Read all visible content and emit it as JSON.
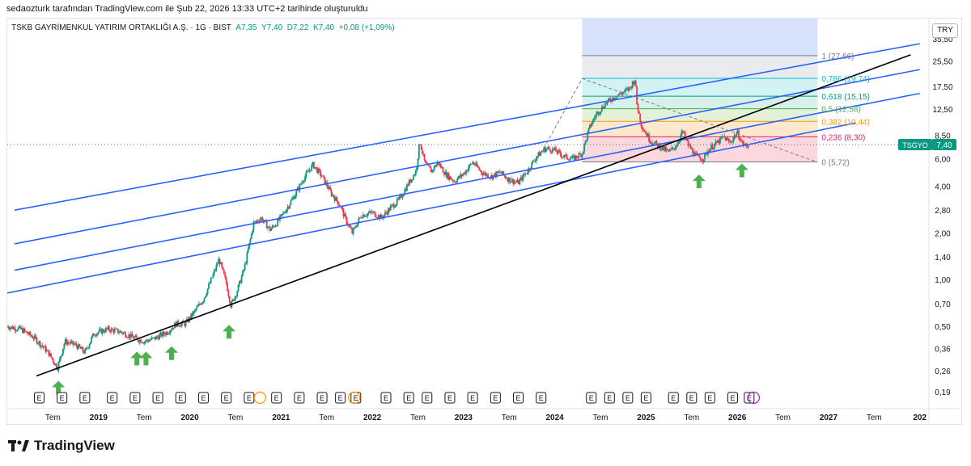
{
  "header": {
    "author_line": "sedaozturk tarafından TradingView.com ile Şub 22, 2026 13:33 UTC+2 tarihinde oluşturuldu"
  },
  "legend": {
    "symbol": "TSKB GAYRİMENKUL YATIRIM ORTAKLIĞI A.Ş. · 1G · BIST",
    "open": "A7,35",
    "high": "Y7,40",
    "low": "D7,22",
    "close": "K7,40",
    "change": "+0,08 (+1,09%)"
  },
  "currency": "TRY",
  "brand": "TradingView",
  "colors": {
    "candle_up": "#089981",
    "candle_down": "#f23645",
    "channel": "#2962ff",
    "trendline": "#000000",
    "arrow": "#4caf50",
    "price_tag": "#089981"
  },
  "chart_data": {
    "type": "candlestick",
    "scale": "log",
    "title": "TSKB GAYRİMENKUL YATIRIM ORTAKLIĞI A.Ş. · 1G · BIST",
    "x_range": [
      "2018-01",
      "2028-01"
    ],
    "y_ticks": [
      "0,19",
      "0,26",
      "0,36",
      "0,50",
      "0,70",
      "1,00",
      "1,40",
      "2,00",
      "2,80",
      "4,00",
      "6,00",
      "8,50",
      "12,50",
      "17,50",
      "25,50",
      "35,50"
    ],
    "y_tick_values": [
      0.19,
      0.26,
      0.36,
      0.5,
      0.7,
      1.0,
      1.4,
      2.0,
      2.8,
      4.0,
      6.0,
      8.5,
      12.5,
      17.5,
      25.5,
      35.5
    ],
    "x_ticks": [
      {
        "label": "Tem",
        "t": 2018.5
      },
      {
        "label": "2019",
        "t": 2019.0
      },
      {
        "label": "Tem",
        "t": 2019.5
      },
      {
        "label": "2020",
        "t": 2020.0
      },
      {
        "label": "Tem",
        "t": 2020.5
      },
      {
        "label": "2021",
        "t": 2021.0
      },
      {
        "label": "Tem",
        "t": 2021.5
      },
      {
        "label": "2022",
        "t": 2022.0
      },
      {
        "label": "Tem",
        "t": 2022.5
      },
      {
        "label": "2023",
        "t": 2023.0
      },
      {
        "label": "Tem",
        "t": 2023.5
      },
      {
        "label": "2024",
        "t": 2024.0
      },
      {
        "label": "Tem",
        "t": 2024.5
      },
      {
        "label": "2025",
        "t": 2025.0
      },
      {
        "label": "Tem",
        "t": 2025.5
      },
      {
        "label": "2026",
        "t": 2026.0
      },
      {
        "label": "Tem",
        "t": 2026.5
      },
      {
        "label": "2027",
        "t": 2027.0
      },
      {
        "label": "Tem",
        "t": 2027.5
      },
      {
        "label": "202",
        "t": 2028.0
      }
    ],
    "bold_x_labels": [
      "2019",
      "2020",
      "2021",
      "2022",
      "2023",
      "2024",
      "2025",
      "2026",
      "2027",
      "202"
    ],
    "price_path": [
      [
        2018.0,
        0.5
      ],
      [
        2018.15,
        0.48
      ],
      [
        2018.3,
        0.42
      ],
      [
        2018.45,
        0.34
      ],
      [
        2018.55,
        0.27
      ],
      [
        2018.63,
        0.4
      ],
      [
        2018.75,
        0.38
      ],
      [
        2018.85,
        0.34
      ],
      [
        2018.95,
        0.45
      ],
      [
        2019.1,
        0.48
      ],
      [
        2019.25,
        0.46
      ],
      [
        2019.4,
        0.42
      ],
      [
        2019.5,
        0.4
      ],
      [
        2019.62,
        0.42
      ],
      [
        2019.75,
        0.46
      ],
      [
        2019.85,
        0.52
      ],
      [
        2019.95,
        0.52
      ],
      [
        2020.05,
        0.62
      ],
      [
        2020.15,
        0.75
      ],
      [
        2020.25,
        1.05
      ],
      [
        2020.32,
        1.35
      ],
      [
        2020.4,
        0.95
      ],
      [
        2020.45,
        0.68
      ],
      [
        2020.52,
        0.85
      ],
      [
        2020.6,
        1.2
      ],
      [
        2020.7,
        2.3
      ],
      [
        2020.78,
        2.5
      ],
      [
        2020.88,
        2.1
      ],
      [
        2020.95,
        2.3
      ],
      [
        2021.05,
        2.8
      ],
      [
        2021.15,
        3.5
      ],
      [
        2021.25,
        4.5
      ],
      [
        2021.35,
        5.5
      ],
      [
        2021.45,
        4.6
      ],
      [
        2021.55,
        3.6
      ],
      [
        2021.65,
        3.0
      ],
      [
        2021.7,
        2.5
      ],
      [
        2021.78,
        2.0
      ],
      [
        2021.88,
        2.6
      ],
      [
        2022.0,
        2.7
      ],
      [
        2022.1,
        2.5
      ],
      [
        2022.2,
        2.9
      ],
      [
        2022.3,
        3.3
      ],
      [
        2022.4,
        4.2
      ],
      [
        2022.48,
        5.0
      ],
      [
        2022.52,
        7.8
      ],
      [
        2022.58,
        5.5
      ],
      [
        2022.65,
        5.0
      ],
      [
        2022.72,
        5.7
      ],
      [
        2022.8,
        4.8
      ],
      [
        2022.9,
        4.3
      ],
      [
        2023.0,
        4.8
      ],
      [
        2023.1,
        5.7
      ],
      [
        2023.2,
        4.9
      ],
      [
        2023.3,
        4.6
      ],
      [
        2023.4,
        4.9
      ],
      [
        2023.5,
        4.4
      ],
      [
        2023.6,
        4.2
      ],
      [
        2023.7,
        5.0
      ],
      [
        2023.8,
        6.2
      ],
      [
        2023.9,
        7.0
      ],
      [
        2024.0,
        6.8
      ],
      [
        2024.1,
        6.2
      ],
      [
        2024.2,
        6.0
      ],
      [
        2024.3,
        6.5
      ],
      [
        2024.38,
        9.5
      ],
      [
        2024.45,
        11.5
      ],
      [
        2024.55,
        13.5
      ],
      [
        2024.65,
        15.0
      ],
      [
        2024.75,
        16.0
      ],
      [
        2024.82,
        17.0
      ],
      [
        2024.88,
        19.7
      ],
      [
        2024.9,
        13.5
      ],
      [
        2024.95,
        9.8
      ],
      [
        2025.05,
        7.8
      ],
      [
        2025.15,
        7.2
      ],
      [
        2025.25,
        6.6
      ],
      [
        2025.33,
        7.3
      ],
      [
        2025.4,
        9.0
      ],
      [
        2025.46,
        7.4
      ],
      [
        2025.55,
        6.2
      ],
      [
        2025.62,
        6.0
      ],
      [
        2025.7,
        7.0
      ],
      [
        2025.78,
        7.6
      ],
      [
        2025.85,
        8.3
      ],
      [
        2025.92,
        7.6
      ],
      [
        2026.0,
        8.9
      ],
      [
        2026.05,
        7.6
      ],
      [
        2026.1,
        7.2
      ],
      [
        2026.13,
        7.4
      ]
    ],
    "fibonacci": {
      "start_t": 2024.3,
      "end_t": 2026.88,
      "levels": [
        {
          "ratio": "1",
          "label": "1 (27,66)",
          "price": 27.66,
          "color": "#787b86",
          "fill": "#e8e9ec"
        },
        {
          "ratio": "0,786",
          "label": "0,786 (19,74)",
          "price": 19.74,
          "color": "#00bcd4",
          "fill": "#cdf1f2"
        },
        {
          "ratio": "0,618",
          "label": "0,618 (15,15)",
          "price": 15.15,
          "color": "#089981",
          "fill": "#d4f0e6"
        },
        {
          "ratio": "0,5",
          "label": "0,5 (12,58)",
          "price": 12.58,
          "color": "#4caf50",
          "fill": "#dff0d4"
        },
        {
          "ratio": "0,382",
          "label": "0,382 (10,44)",
          "price": 10.44,
          "color": "#ff9800",
          "fill": "#fde5c8"
        },
        {
          "ratio": "0,236",
          "label": "0,236 (8,30)",
          "price": 8.3,
          "color": "#e91e63",
          "fill": "#fbd4da"
        },
        {
          "ratio": "0",
          "label": "0 (5,72)",
          "price": 5.72,
          "color": "#787b86",
          "fill": "#fbd4da"
        }
      ],
      "top_price": 60.0,
      "top_fill": "#d6e2fc"
    },
    "trendline": {
      "from": [
        2018.32,
        0.24
      ],
      "to": [
        2027.9,
        28.0
      ]
    },
    "channels": [
      {
        "from": [
          2018.08,
          2.8
        ],
        "to": [
          2028.0,
          33.0
        ]
      },
      {
        "from": [
          2018.08,
          1.7
        ],
        "to": [
          2028.0,
          22.5
        ]
      },
      {
        "from": [
          2018.08,
          1.15
        ],
        "to": [
          2028.0,
          15.8
        ]
      },
      {
        "from": [
          2018.0,
          0.82
        ],
        "to": [
          2027.3,
          10.2
        ]
      }
    ],
    "dashed_lines": [
      {
        "from": [
          2023.85,
          6.5
        ],
        "to": [
          2024.3,
          19.7
        ]
      },
      {
        "from": [
          2024.3,
          19.7
        ],
        "to": [
          2026.88,
          5.7
        ]
      }
    ],
    "arrows": [
      {
        "t": 2018.56,
        "price": 0.24
      },
      {
        "t": 2019.42,
        "price": 0.37
      },
      {
        "t": 2019.52,
        "price": 0.37
      },
      {
        "t": 2019.8,
        "price": 0.4
      },
      {
        "t": 2020.43,
        "price": 0.55
      },
      {
        "t": 2025.58,
        "price": 5.1
      },
      {
        "t": 2026.05,
        "price": 6.0
      }
    ],
    "event_markers": [
      2018.35,
      2018.6,
      2018.85,
      2019.15,
      2019.4,
      2019.65,
      2019.9,
      2020.15,
      2020.4,
      2020.65,
      2020.95,
      2021.2,
      2021.45,
      2021.65,
      2021.82,
      2022.15,
      2022.4,
      2022.6,
      2022.85,
      2023.1,
      2023.35,
      2023.6,
      2023.85,
      2024.4,
      2024.6,
      2024.8,
      2025.0,
      2025.3,
      2025.5,
      2025.7,
      2025.95,
      2026.13
    ],
    "dividend_markers": [
      {
        "t": 2020.77,
        "color": "#ff9800"
      },
      {
        "t": 2021.8,
        "color": "#ff9800"
      },
      {
        "t": 2026.18,
        "color": "#9c27b0"
      }
    ],
    "event_label": "E",
    "last_price": {
      "symbol": "TSGYO",
      "value": "7,40",
      "price": 7.4
    }
  }
}
